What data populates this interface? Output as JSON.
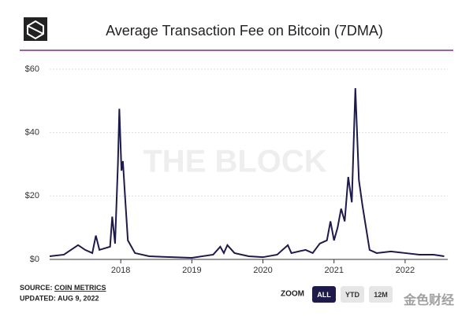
{
  "chart_data": {
    "type": "line",
    "title": "Average Transaction Fee on Bitcoin (7DMA)",
    "watermark": "THE BLOCK",
    "source_label": "SOURCE:",
    "source": "COIN METRICS",
    "updated": "UPDATED: AUG 9, 2022",
    "zoom_label": "ZOOM",
    "zoom_buttons": [
      "ALL",
      "YTD",
      "12M"
    ],
    "overlay_watermark": "金色财经",
    "xlim": [
      2017.0,
      2022.6
    ],
    "xticks": [
      2018,
      2019,
      2020,
      2021,
      2022
    ],
    "ylim": [
      0,
      60
    ],
    "yticks": [
      {
        "value": 0,
        "label": "$0"
      },
      {
        "value": 20,
        "label": "$20"
      },
      {
        "value": 40,
        "label": "$40"
      },
      {
        "value": 60,
        "label": "$60"
      }
    ],
    "grid": true,
    "series": [
      {
        "name": "Average Transaction Fee",
        "color": "#1e1a4a",
        "x": [
          2017.0,
          2017.2,
          2017.4,
          2017.5,
          2017.6,
          2017.65,
          2017.7,
          2017.85,
          2017.88,
          2017.92,
          2017.96,
          2017.98,
          2018.01,
          2018.03,
          2018.06,
          2018.1,
          2018.2,
          2018.4,
          2018.6,
          2019.0,
          2019.3,
          2019.4,
          2019.45,
          2019.5,
          2019.6,
          2019.8,
          2020.0,
          2020.2,
          2020.35,
          2020.4,
          2020.6,
          2020.7,
          2020.8,
          2020.9,
          2020.95,
          2021.0,
          2021.05,
          2021.1,
          2021.15,
          2021.2,
          2021.25,
          2021.3,
          2021.35,
          2021.4,
          2021.45,
          2021.5,
          2021.6,
          2021.8,
          2022.0,
          2022.2,
          2022.4,
          2022.55
        ],
        "values": [
          1,
          1.5,
          4.5,
          3,
          2,
          7.5,
          3,
          4,
          13.5,
          5,
          30,
          47.5,
          28,
          31,
          20,
          6,
          2,
          1,
          0.8,
          0.5,
          1.5,
          4,
          2,
          4.5,
          2,
          1,
          0.7,
          1.5,
          4.5,
          2,
          3,
          2,
          5,
          6,
          12,
          6,
          10,
          16,
          12,
          26,
          18,
          54,
          25,
          17,
          10,
          3,
          2,
          2.5,
          2,
          1.5,
          1.5,
          1
        ]
      }
    ]
  }
}
